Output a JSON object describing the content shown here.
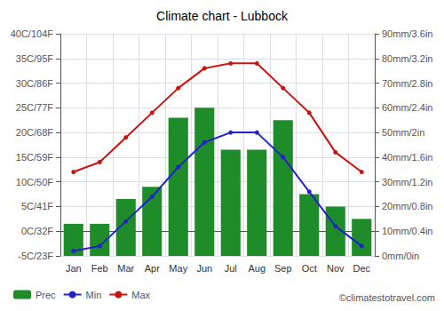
{
  "chart_data": {
    "type": "bar",
    "title": "Climate chart - Lubbock",
    "categories": [
      "Jan",
      "Feb",
      "Mar",
      "Apr",
      "May",
      "Jun",
      "Jul",
      "Aug",
      "Sep",
      "Oct",
      "Nov",
      "Dec"
    ],
    "series": [
      {
        "name": "Prec",
        "type": "bar",
        "axis": "y2",
        "color": "#1e8c28",
        "values": [
          13,
          13,
          23,
          28,
          56,
          60,
          43,
          43,
          55,
          25,
          20,
          15
        ]
      },
      {
        "name": "Min",
        "type": "line",
        "color": "#2222cc",
        "marker": "circle",
        "values": [
          -4,
          -3,
          2,
          7,
          13,
          18,
          20,
          20,
          15,
          8,
          1,
          -3
        ]
      },
      {
        "name": "Max",
        "type": "line",
        "color": "#cc1111",
        "marker": "circle",
        "values": [
          12,
          14,
          19,
          24,
          29,
          33,
          34,
          34,
          29,
          24,
          16,
          12
        ]
      }
    ],
    "ylim": [
      -5,
      40
    ],
    "yticks": [
      {
        "value": -5,
        "label": "-5C/23F"
      },
      {
        "value": 0,
        "label": "0C/32F"
      },
      {
        "value": 5,
        "label": "5C/41F"
      },
      {
        "value": 10,
        "label": "10C/50F"
      },
      {
        "value": 15,
        "label": "15C/59F"
      },
      {
        "value": 20,
        "label": "20C/68F"
      },
      {
        "value": 25,
        "label": "25C/77F"
      },
      {
        "value": 30,
        "label": "30C/86F"
      },
      {
        "value": 35,
        "label": "35C/95F"
      },
      {
        "value": 40,
        "label": "40C/104F"
      }
    ],
    "y2lim": [
      0,
      90
    ],
    "y2ticks": [
      {
        "value": 0,
        "label": "0mm/0in"
      },
      {
        "value": 10,
        "label": "10mm/0.4in"
      },
      {
        "value": 20,
        "label": "20mm/0.8in"
      },
      {
        "value": 30,
        "label": "30mm/1.2in"
      },
      {
        "value": 40,
        "label": "40mm/1.6in"
      },
      {
        "value": 50,
        "label": "50mm/2in"
      },
      {
        "value": 60,
        "label": "60mm/2.4in"
      },
      {
        "value": 70,
        "label": "70mm/2.8in"
      },
      {
        "value": 80,
        "label": "80mm/3.2in"
      },
      {
        "value": 90,
        "label": "90mm/3.6in"
      }
    ],
    "grid": true,
    "legend": "bottom",
    "annotations": [
      "©climatestotravel.com"
    ]
  }
}
